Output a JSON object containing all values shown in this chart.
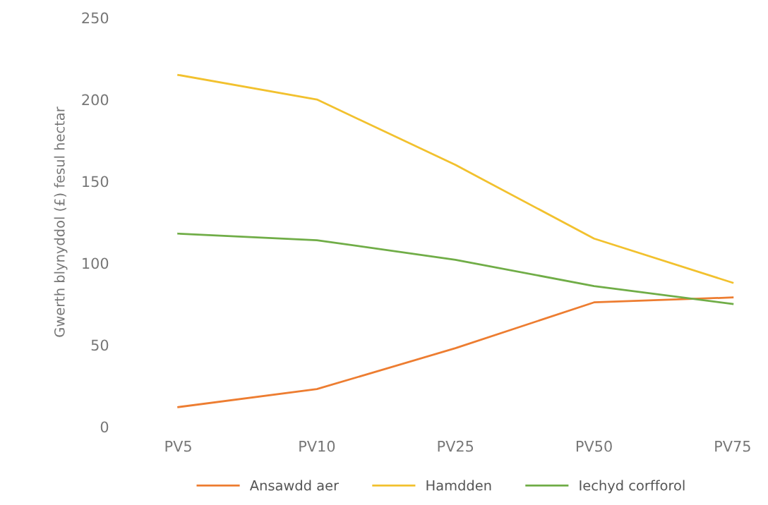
{
  "chart_data": {
    "type": "line",
    "ylabel": "Gwerth blynyddol (£) fesul hectar",
    "categories": [
      "PV5",
      "PV10",
      "PV25",
      "PV50",
      "PV75"
    ],
    "series": [
      {
        "name": "Ansawdd aer",
        "color": "#ed7d31",
        "values": [
          12,
          23,
          48,
          76,
          79
        ]
      },
      {
        "name": "Hamdden",
        "color": "#f2c12e",
        "values": [
          215,
          200,
          160,
          115,
          88
        ]
      },
      {
        "name": "Iechyd corfforol",
        "color": "#70ad47",
        "values": [
          118,
          114,
          102,
          86,
          75
        ]
      }
    ],
    "ylim": [
      0,
      250
    ],
    "yticks": [
      0,
      50,
      100,
      150,
      200,
      250
    ],
    "grid": false,
    "legend": "bottom",
    "marker": "none",
    "line_style": "solid"
  }
}
